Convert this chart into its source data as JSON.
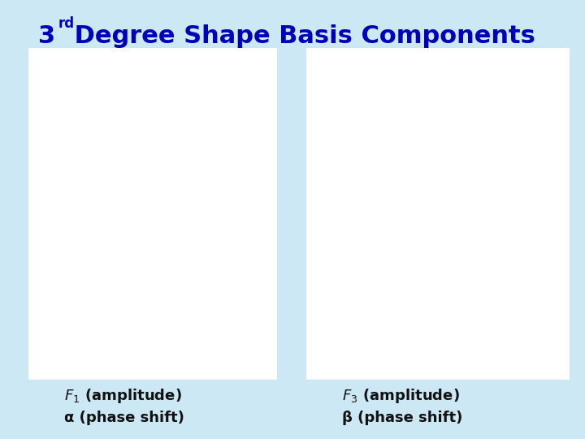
{
  "title_num": "3",
  "title_sup": "rd",
  "title_rest": " Degree Shape Basis Components",
  "bg_color": "#cce8f4",
  "title_color": "#0000bb",
  "label1_line1": "$F_1$ (amplitude)",
  "label1_line2": "α (phase shift)",
  "label2_line1": "$F_3$ (amplitude)",
  "label2_line2": "β (phase shift)",
  "label_color": "#111111",
  "panel_bg": "#ffffff",
  "surface1_facecolor": "#44dddd",
  "surface1_edgecolor": "#009999",
  "surface2_facecolor": "#dddd44",
  "surface2_edgecolor": "#888800",
  "surface2_dark_facecolor": "#222222",
  "surface2_dark_edgecolor": "#111111",
  "arrow_blue": "#3333ff",
  "arrow_red": "#dd2222",
  "arrow_green": "#009900",
  "grid_n": 40,
  "elev1": 18,
  "azim1": -110,
  "elev2": 18,
  "azim2": -50
}
